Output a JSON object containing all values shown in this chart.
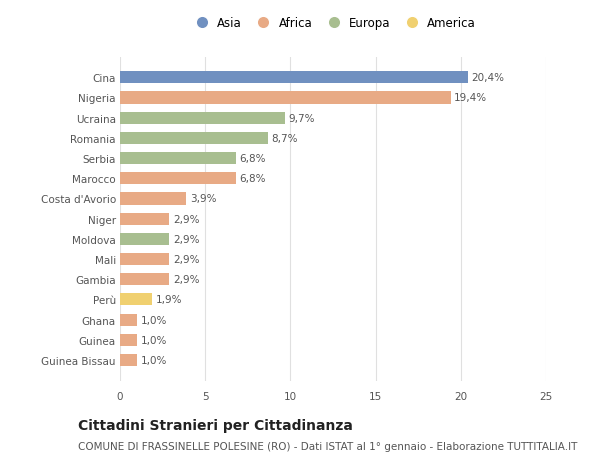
{
  "countries": [
    "Cina",
    "Nigeria",
    "Ucraina",
    "Romania",
    "Serbia",
    "Marocco",
    "Costa d'Avorio",
    "Niger",
    "Moldova",
    "Mali",
    "Gambia",
    "Perù",
    "Ghana",
    "Guinea",
    "Guinea Bissau"
  ],
  "values": [
    20.4,
    19.4,
    9.7,
    8.7,
    6.8,
    6.8,
    3.9,
    2.9,
    2.9,
    2.9,
    2.9,
    1.9,
    1.0,
    1.0,
    1.0
  ],
  "labels": [
    "20,4%",
    "19,4%",
    "9,7%",
    "8,7%",
    "6,8%",
    "6,8%",
    "3,9%",
    "2,9%",
    "2,9%",
    "2,9%",
    "2,9%",
    "1,9%",
    "1,0%",
    "1,0%",
    "1,0%"
  ],
  "continents": [
    "Asia",
    "Africa",
    "Europa",
    "Europa",
    "Europa",
    "Africa",
    "Africa",
    "Africa",
    "Europa",
    "Africa",
    "Africa",
    "America",
    "Africa",
    "Africa",
    "Africa"
  ],
  "colors": {
    "Asia": "#7090c0",
    "Africa": "#e8aa85",
    "Europa": "#a8be90",
    "America": "#f0d070"
  },
  "legend_order": [
    "Asia",
    "Africa",
    "Europa",
    "America"
  ],
  "xlim": [
    0,
    25
  ],
  "xticks": [
    0,
    5,
    10,
    15,
    20,
    25
  ],
  "title": "Cittadini Stranieri per Cittadinanza",
  "subtitle": "COMUNE DI FRASSINELLE POLESINE (RO) - Dati ISTAT al 1° gennaio - Elaborazione TUTTITALIA.IT",
  "bar_height": 0.6,
  "background_color": "#ffffff",
  "grid_color": "#e0e0e0",
  "label_fontsize": 7.5,
  "tick_fontsize": 7.5,
  "title_fontsize": 10,
  "subtitle_fontsize": 7.5
}
